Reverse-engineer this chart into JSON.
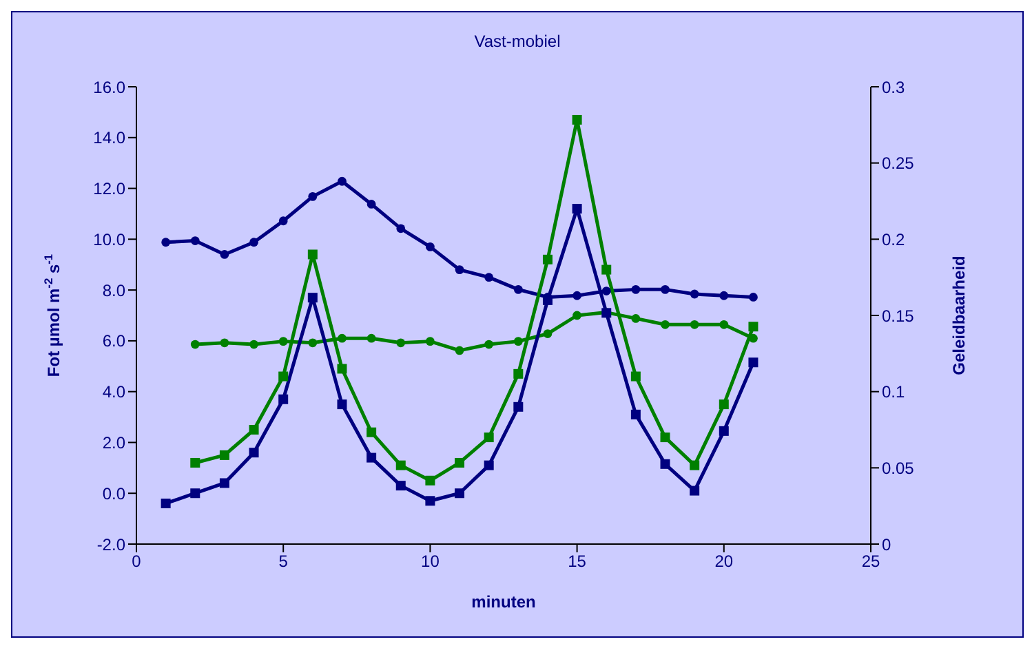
{
  "chart_data": {
    "type": "line",
    "title": "Vast-mobiel",
    "xlabel": "minuten",
    "ylabel": "Fot µmol m$^{-2}$ s$^{-1}$",
    "y2label": "Geleidbaarheid",
    "xlim": [
      0,
      25
    ],
    "xticks": [
      0,
      5,
      10,
      15,
      20,
      25
    ],
    "ylim": [
      -2,
      16
    ],
    "yticks": [
      {
        "value": -2,
        "label": "-2.0"
      },
      {
        "value": 0,
        "label": "0.0"
      },
      {
        "value": 2,
        "label": "2.0"
      },
      {
        "value": 4,
        "label": "4.0"
      },
      {
        "value": 6,
        "label": "6.0"
      },
      {
        "value": 8,
        "label": "8.0"
      },
      {
        "value": 10,
        "label": "10.0"
      },
      {
        "value": 12,
        "label": "12.0"
      },
      {
        "value": 14,
        "label": "14.0"
      },
      {
        "value": 16,
        "label": "16.0"
      }
    ],
    "y2lim": [
      0,
      0.3
    ],
    "y2ticks": [
      0,
      0.05,
      0.1,
      0.15,
      0.2,
      0.25,
      0.3
    ],
    "grid": false,
    "legend": false,
    "series": [
      {
        "color": "#000080",
        "marker": "square",
        "x": [
          1,
          2,
          3,
          4,
          5,
          6,
          7,
          8,
          9,
          10,
          11,
          12,
          13,
          14,
          15,
          16,
          17,
          18,
          19,
          20,
          21
        ],
        "values": [
          -0.4,
          0.0,
          0.4,
          1.6,
          3.7,
          7.7,
          3.5,
          1.4,
          0.3,
          -0.3,
          0.0,
          1.1,
          3.4,
          7.6,
          11.2,
          7.1,
          3.1,
          1.15,
          0.1,
          2.45,
          5.15
        ]
      },
      {
        "color": "#008000",
        "marker": "square",
        "x": [
          2,
          3,
          4,
          5,
          6,
          7,
          8,
          9,
          10,
          11,
          12,
          13,
          14,
          15,
          16,
          17,
          18,
          19,
          20,
          21
        ],
        "values": [
          1.2,
          1.5,
          2.5,
          4.6,
          9.4,
          4.9,
          2.4,
          1.1,
          0.5,
          1.2,
          2.2,
          4.7,
          9.2,
          14.7,
          8.8,
          4.6,
          2.2,
          1.1,
          3.5,
          6.56
        ]
      },
      {
        "color": "#000080",
        "marker": "circle",
        "axis": "y2",
        "x": [
          1,
          2,
          3,
          4,
          5,
          6,
          7,
          8,
          9,
          10,
          11,
          12,
          13,
          14,
          15,
          16,
          17,
          18,
          19,
          20,
          21
        ],
        "values": [
          0.198,
          0.199,
          0.19,
          0.198,
          0.212,
          0.228,
          0.238,
          0.223,
          0.207,
          0.195,
          0.18,
          0.175,
          0.167,
          0.162,
          0.163,
          0.166,
          0.167,
          0.167,
          0.164,
          0.163,
          0.162
        ]
      },
      {
        "color": "#008000",
        "marker": "circle",
        "axis": "y2",
        "x": [
          2,
          3,
          4,
          5,
          6,
          7,
          8,
          9,
          10,
          11,
          12,
          13,
          14,
          15,
          16,
          17,
          18,
          19,
          20,
          21
        ],
        "values": [
          0.131,
          0.132,
          0.131,
          0.133,
          0.132,
          0.135,
          0.135,
          0.132,
          0.133,
          0.127,
          0.131,
          0.133,
          0.138,
          0.15,
          0.152,
          0.148,
          0.144,
          0.144,
          0.144,
          0.135
        ]
      }
    ]
  }
}
